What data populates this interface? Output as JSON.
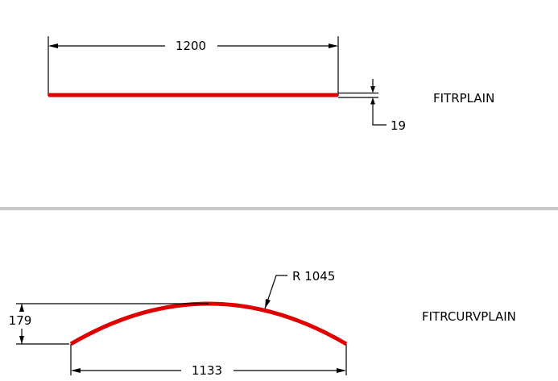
{
  "colors": {
    "part": "#e00000",
    "dimension": "#000000",
    "divider": "#c8c8c8",
    "background": "#ffffff"
  },
  "plain": {
    "name": "FITRPLAIN",
    "length": "1200",
    "thickness": "19"
  },
  "curved": {
    "name": "FITRCURVPLAIN",
    "radius": "R 1045",
    "rise": "179",
    "chord": "1133"
  }
}
